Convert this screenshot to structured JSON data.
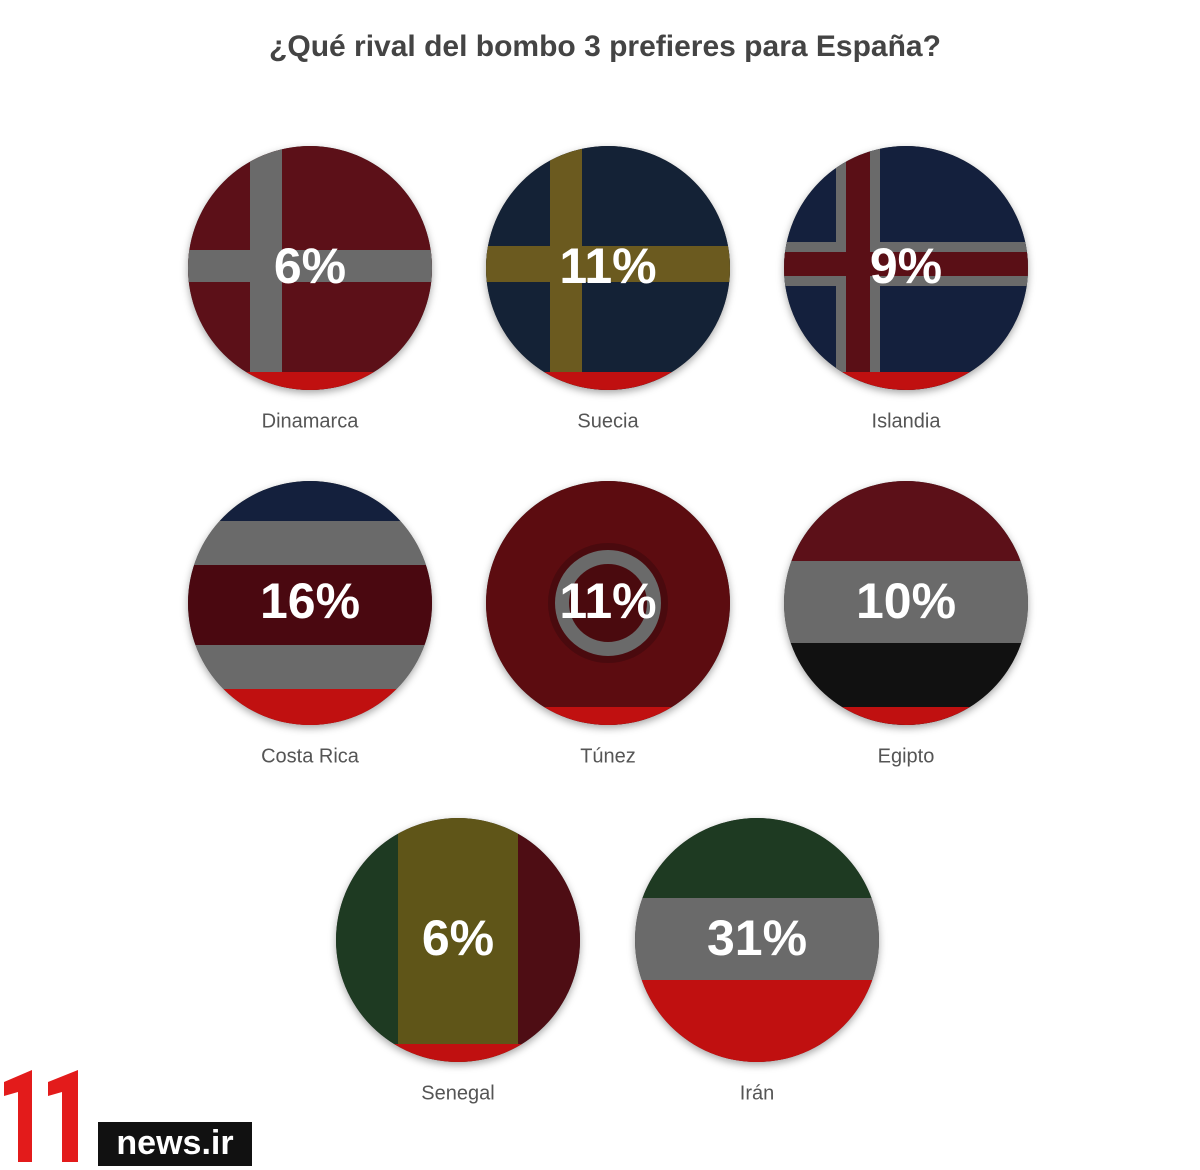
{
  "title": "¿Qué rival del bombo 3 prefieres para España?",
  "options": [
    {
      "label": "Dinamarca",
      "percent": "6%"
    },
    {
      "label": "Suecia",
      "percent": "11%"
    },
    {
      "label": "Islandia",
      "percent": "9%"
    },
    {
      "label": "Costa Rica",
      "percent": "16%"
    },
    {
      "label": "Túnez",
      "percent": "11%"
    },
    {
      "label": "Egipto",
      "percent": "10%"
    },
    {
      "label": "Senegal",
      "percent": "6%"
    },
    {
      "label": "Irán",
      "percent": "31%"
    }
  ],
  "watermark": "news.ir"
}
